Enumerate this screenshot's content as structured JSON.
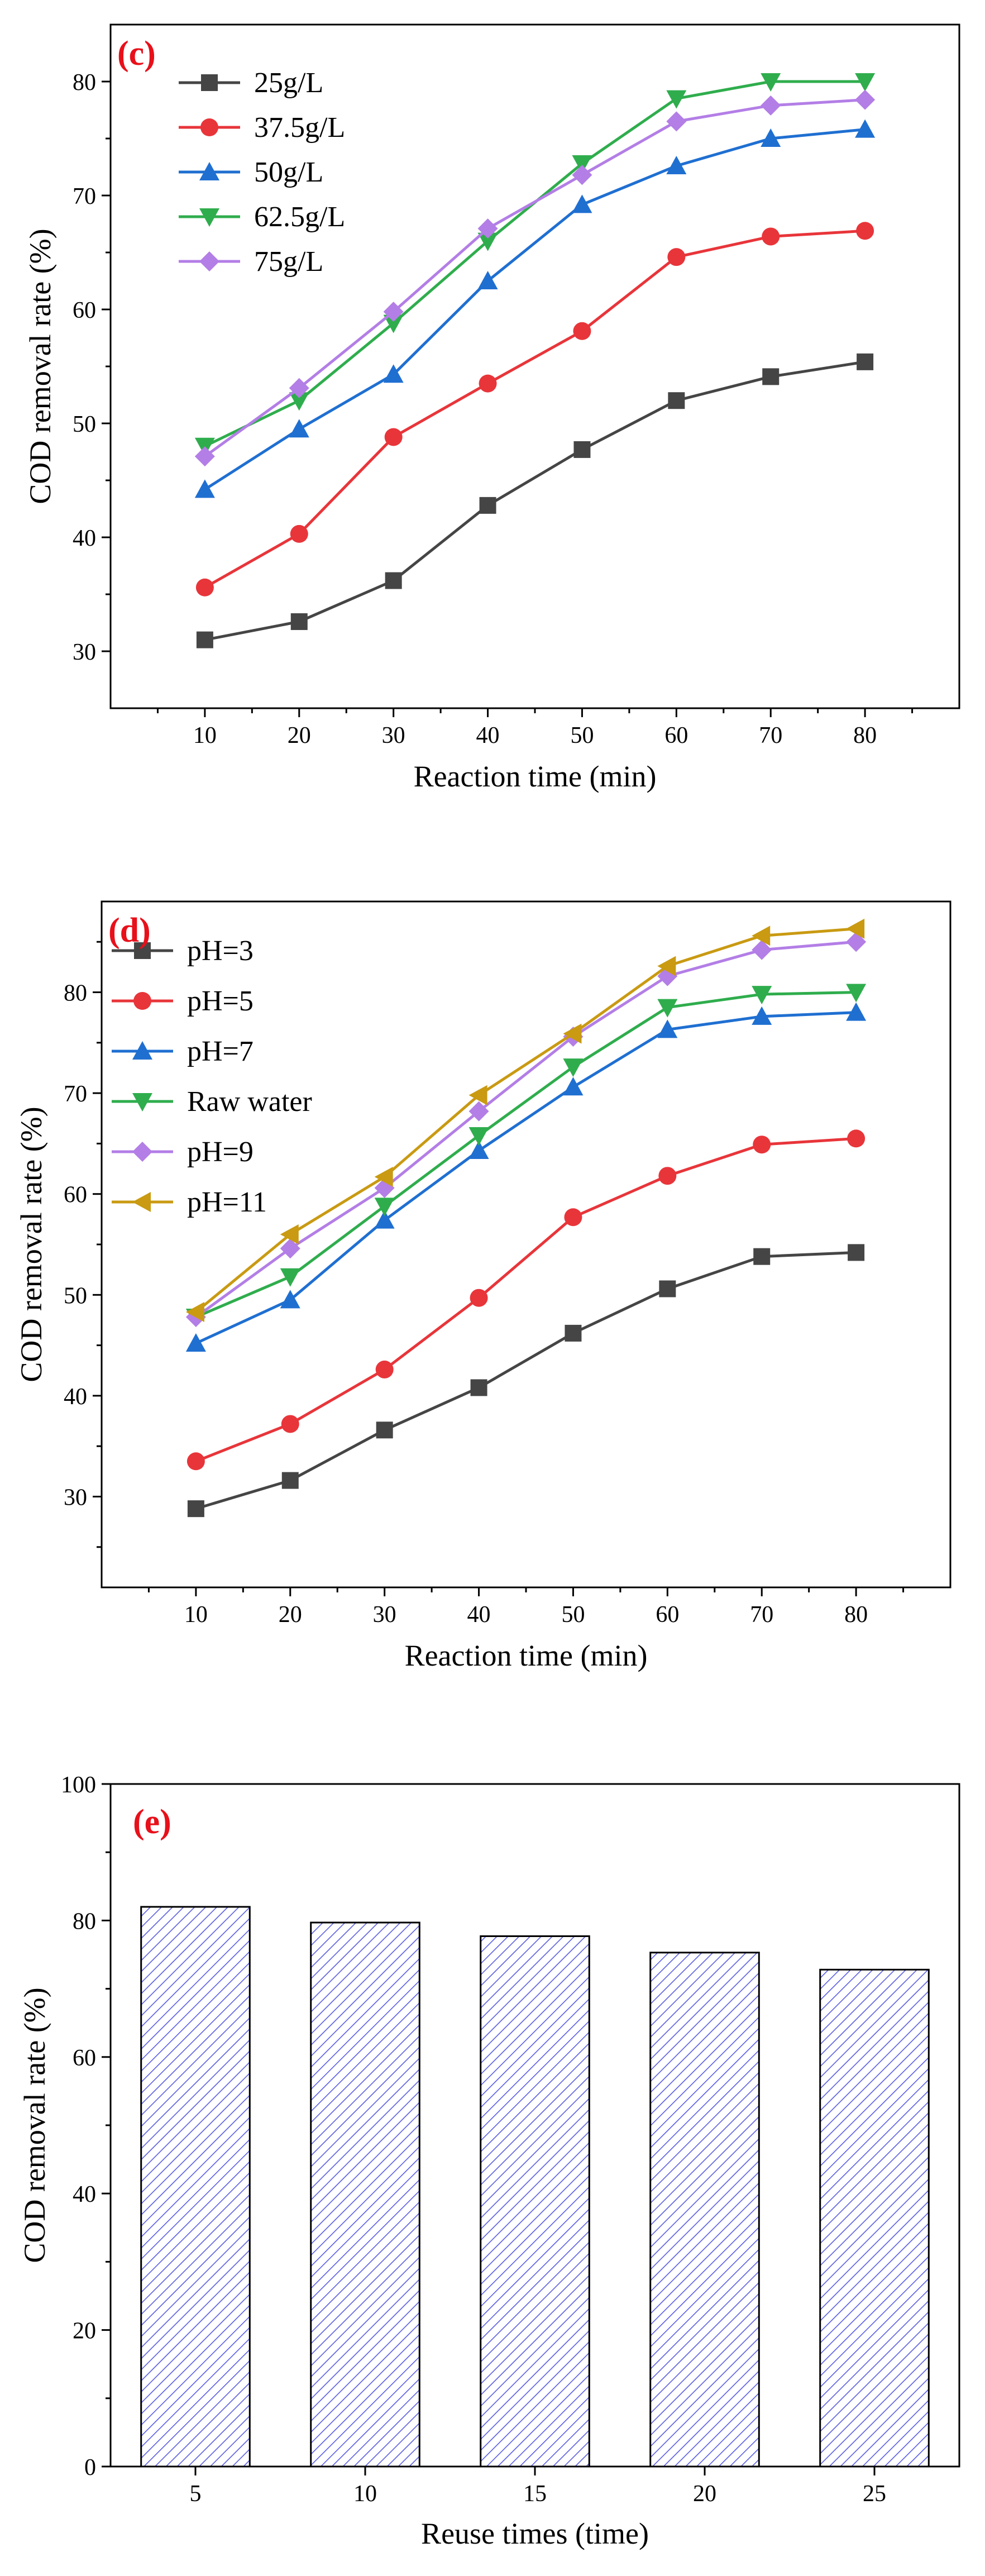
{
  "chart_data": [
    {
      "type": "line",
      "panel_label": "(c)",
      "xlabel": "Reaction time (min)",
      "ylabel": "COD removal rate (%)",
      "xlim": [
        0,
        90
      ],
      "ylim": [
        25,
        85
      ],
      "xticks": [
        10,
        20,
        30,
        40,
        50,
        60,
        70,
        80
      ],
      "yticks": [
        30,
        40,
        50,
        60,
        70,
        80
      ],
      "legend_position": "top-left",
      "x": [
        10,
        20,
        30,
        40,
        50,
        60,
        70,
        80
      ],
      "series": [
        {
          "name": "25g/L",
          "marker": "square",
          "color": "#454545",
          "values": [
            31.0,
            32.6,
            36.2,
            42.8,
            47.7,
            52.0,
            54.1,
            55.4
          ]
        },
        {
          "name": "37.5g/L",
          "marker": "circle",
          "color": "#e8353a",
          "values": [
            35.6,
            40.3,
            48.8,
            53.5,
            58.1,
            64.6,
            66.4,
            66.9
          ]
        },
        {
          "name": "50g/L",
          "marker": "triangle-up",
          "color": "#1f6fd1",
          "values": [
            44.2,
            49.5,
            54.3,
            62.5,
            69.2,
            72.6,
            75.0,
            75.8
          ]
        },
        {
          "name": "62.5g/L",
          "marker": "triangle-down",
          "color": "#2fad4d",
          "values": [
            48.0,
            52.0,
            58.8,
            66.0,
            72.8,
            78.5,
            80.0,
            80.0
          ]
        },
        {
          "name": "75g/L",
          "marker": "diamond",
          "color": "#b37ee6",
          "values": [
            47.1,
            53.1,
            59.8,
            67.1,
            71.8,
            76.5,
            77.9,
            78.4
          ]
        }
      ]
    },
    {
      "type": "line",
      "panel_label": "(d)",
      "xlabel": "Reaction time (min)",
      "ylabel": "COD removal rate (%)",
      "xlim": [
        0,
        90
      ],
      "ylim": [
        21,
        89
      ],
      "xticks": [
        10,
        20,
        30,
        40,
        50,
        60,
        70,
        80
      ],
      "yticks": [
        30,
        40,
        50,
        60,
        70,
        80
      ],
      "legend_position": "top-left",
      "x": [
        10,
        20,
        30,
        40,
        50,
        60,
        70,
        80
      ],
      "series": [
        {
          "name": "pH=3",
          "marker": "square",
          "color": "#454545",
          "values": [
            28.8,
            31.6,
            36.6,
            40.8,
            46.2,
            50.6,
            53.8,
            54.2
          ]
        },
        {
          "name": "pH=5",
          "marker": "circle",
          "color": "#e8353a",
          "values": [
            33.5,
            37.2,
            42.6,
            49.7,
            57.7,
            61.8,
            64.9,
            65.5
          ]
        },
        {
          "name": "pH=7",
          "marker": "triangle-up",
          "color": "#1f6fd1",
          "values": [
            45.2,
            49.5,
            57.4,
            64.3,
            70.6,
            76.3,
            77.6,
            78.0
          ]
        },
        {
          "name": "Raw water",
          "marker": "triangle-down",
          "color": "#2fad4d",
          "values": [
            47.8,
            51.8,
            58.8,
            65.8,
            72.6,
            78.5,
            79.8,
            80.0
          ]
        },
        {
          "name": "pH=9",
          "marker": "diamond",
          "color": "#b37ee6",
          "values": [
            47.8,
            54.6,
            60.6,
            68.2,
            75.6,
            81.6,
            84.2,
            85.0
          ]
        },
        {
          "name": "pH=11",
          "marker": "triangle-left",
          "color": "#c99a12",
          "values": [
            48.3,
            56.0,
            61.7,
            69.8,
            75.9,
            82.6,
            85.6,
            86.3
          ]
        }
      ]
    },
    {
      "type": "bar",
      "panel_label": "(e)",
      "xlabel": "Reuse times (time)",
      "ylabel": "COD removal rate (%)",
      "ylim": [
        0,
        100
      ],
      "yticks": [
        0,
        20,
        40,
        60,
        80,
        100
      ],
      "categories": [
        "5",
        "10",
        "15",
        "20",
        "25"
      ],
      "values": [
        82.0,
        79.7,
        77.7,
        75.3,
        72.8
      ],
      "bar_color": "#5a5ee0",
      "hatch": "diagonal"
    }
  ]
}
